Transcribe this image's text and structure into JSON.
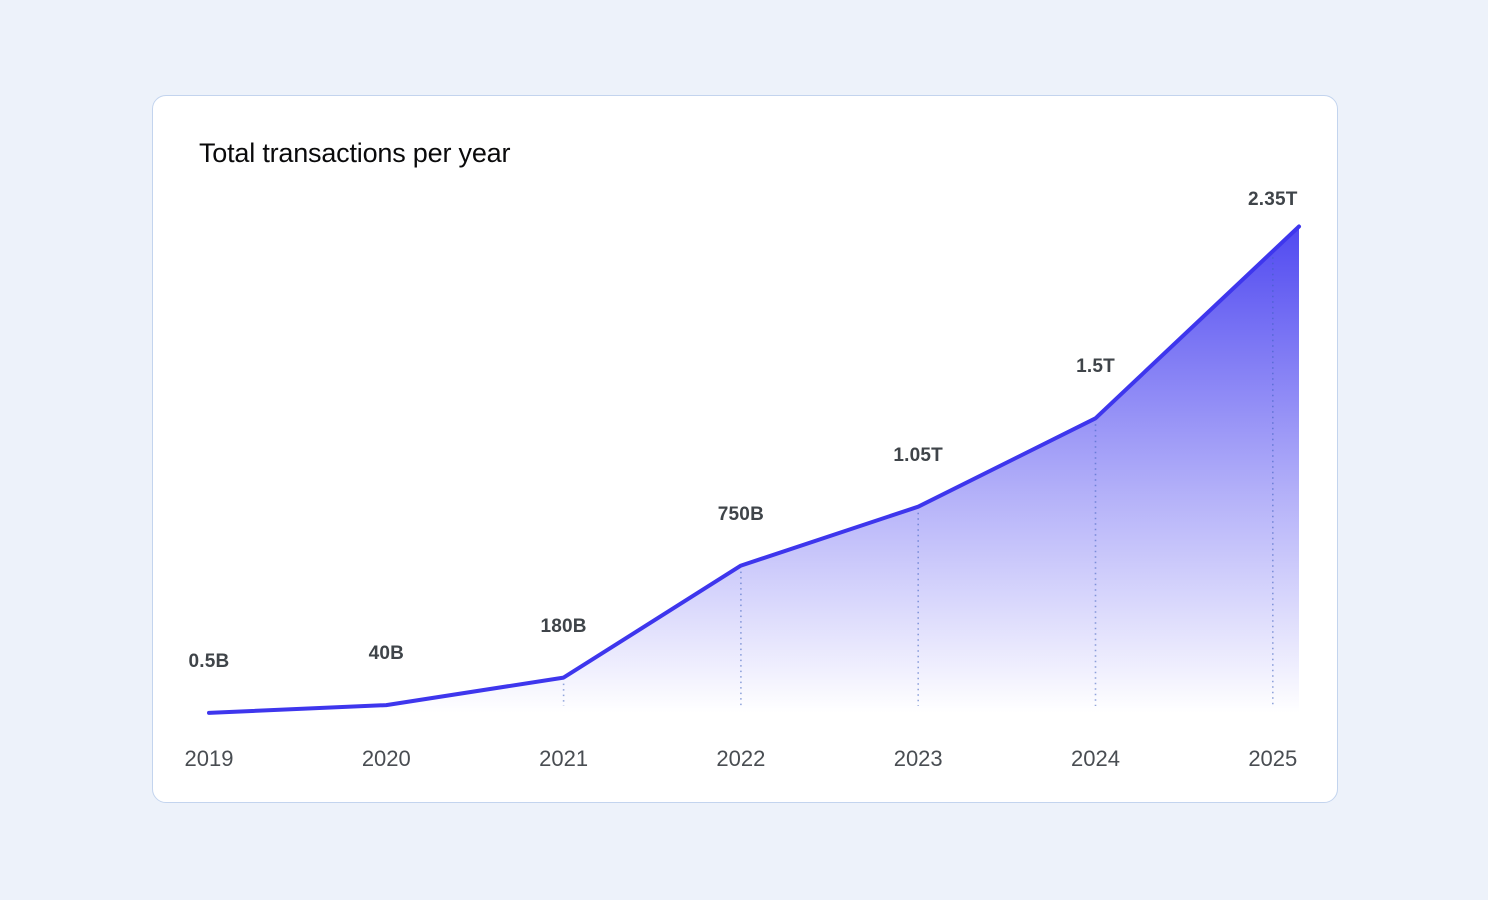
{
  "page": {
    "background_color": "#edf2fa"
  },
  "card": {
    "background_color": "#ffffff",
    "border_color": "#c3d4ee",
    "title": "Total transactions per year"
  },
  "chart_data": {
    "type": "area",
    "title": "Total transactions per year",
    "categories": [
      "2019",
      "2020",
      "2021",
      "2022",
      "2023",
      "2024",
      "2025"
    ],
    "values_billions": [
      0.5,
      40,
      180,
      750,
      1050,
      1500,
      2350
    ],
    "point_labels": [
      "0.5B",
      "40B",
      "180B",
      "750B",
      "1.05T",
      "1.5T",
      "2.35T"
    ],
    "xlabel": "",
    "ylabel": "",
    "ylim_billions": [
      0,
      2450
    ],
    "grid": false,
    "legend": false,
    "guide_lines": "dotted vertical from each point to baseline",
    "line_color": "#3e36ed",
    "area_gradient_top": "#4b44f0",
    "area_gradient_bottom_opacity": 0,
    "guide_line_color": "rgba(58,95,190,0.55)",
    "value_label_color": "#3f4449",
    "year_label_color": "#494d52"
  }
}
